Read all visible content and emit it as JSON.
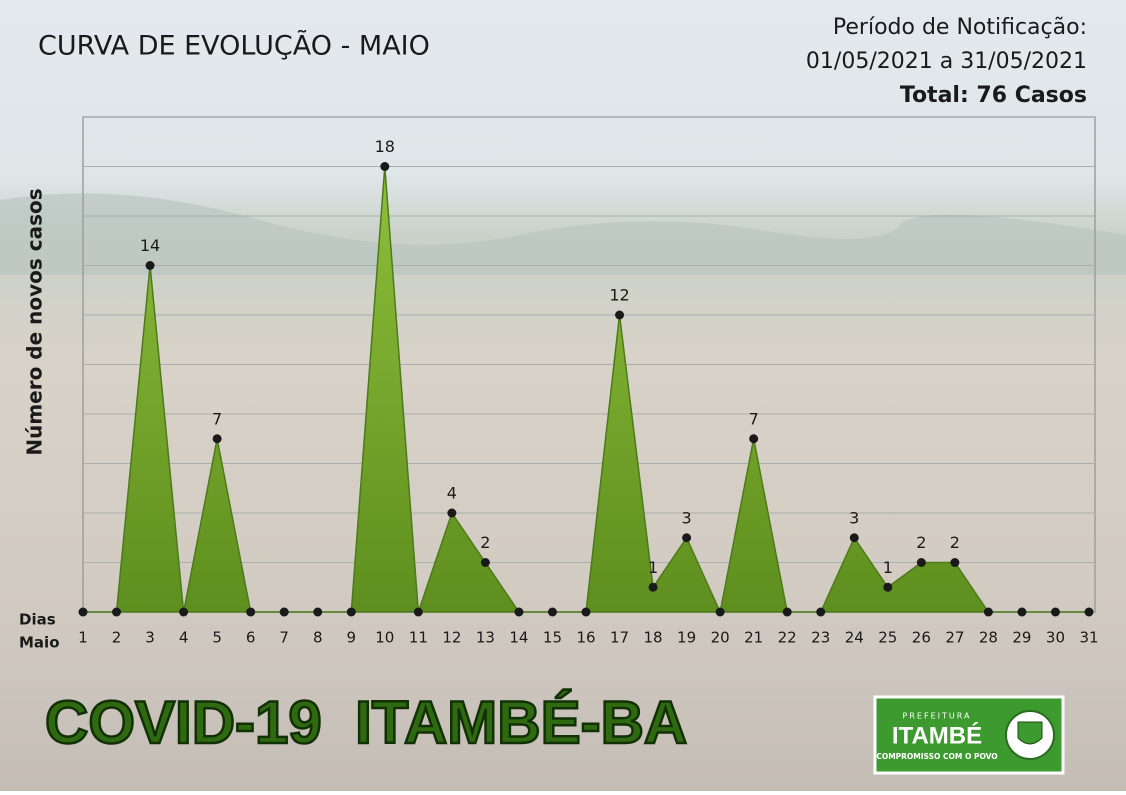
{
  "chart_data": {
    "type": "area",
    "title": "CURVA DE EVOLUÇÃO - MAIO",
    "notes": [
      "Período de Notificação:",
      "01/05/2021 a 31/05/2021",
      "Total: 76 Casos"
    ],
    "ylabel": "Número de novos casos",
    "xlabel": [
      "Dias",
      "Maio"
    ],
    "categories": [
      "1",
      "2",
      "3",
      "4",
      "5",
      "6",
      "7",
      "8",
      "9",
      "10",
      "11",
      "12",
      "13",
      "14",
      "15",
      "16",
      "17",
      "18",
      "19",
      "20",
      "21",
      "22",
      "23",
      "24",
      "25",
      "26",
      "27",
      "28",
      "29",
      "30",
      "31"
    ],
    "values": [
      0,
      0,
      14,
      0,
      7,
      0,
      0,
      0,
      0,
      18,
      0,
      4,
      2,
      0,
      0,
      0,
      12,
      1,
      3,
      0,
      7,
      0,
      0,
      3,
      1,
      2,
      2,
      0,
      0,
      0,
      0
    ],
    "color": "#7aa82c",
    "ylim": [
      0,
      20
    ],
    "yticks": [
      0,
      2,
      4,
      6,
      8,
      10,
      12,
      14,
      16,
      18,
      20
    ],
    "grid": true
  },
  "footer": {
    "banner": "COVID-19  ITAMBÉ-BA",
    "logo": {
      "top": "PREFEITURA",
      "name": "ITAMBÉ",
      "motto": "COMPROMISSO COM O POVO"
    }
  }
}
